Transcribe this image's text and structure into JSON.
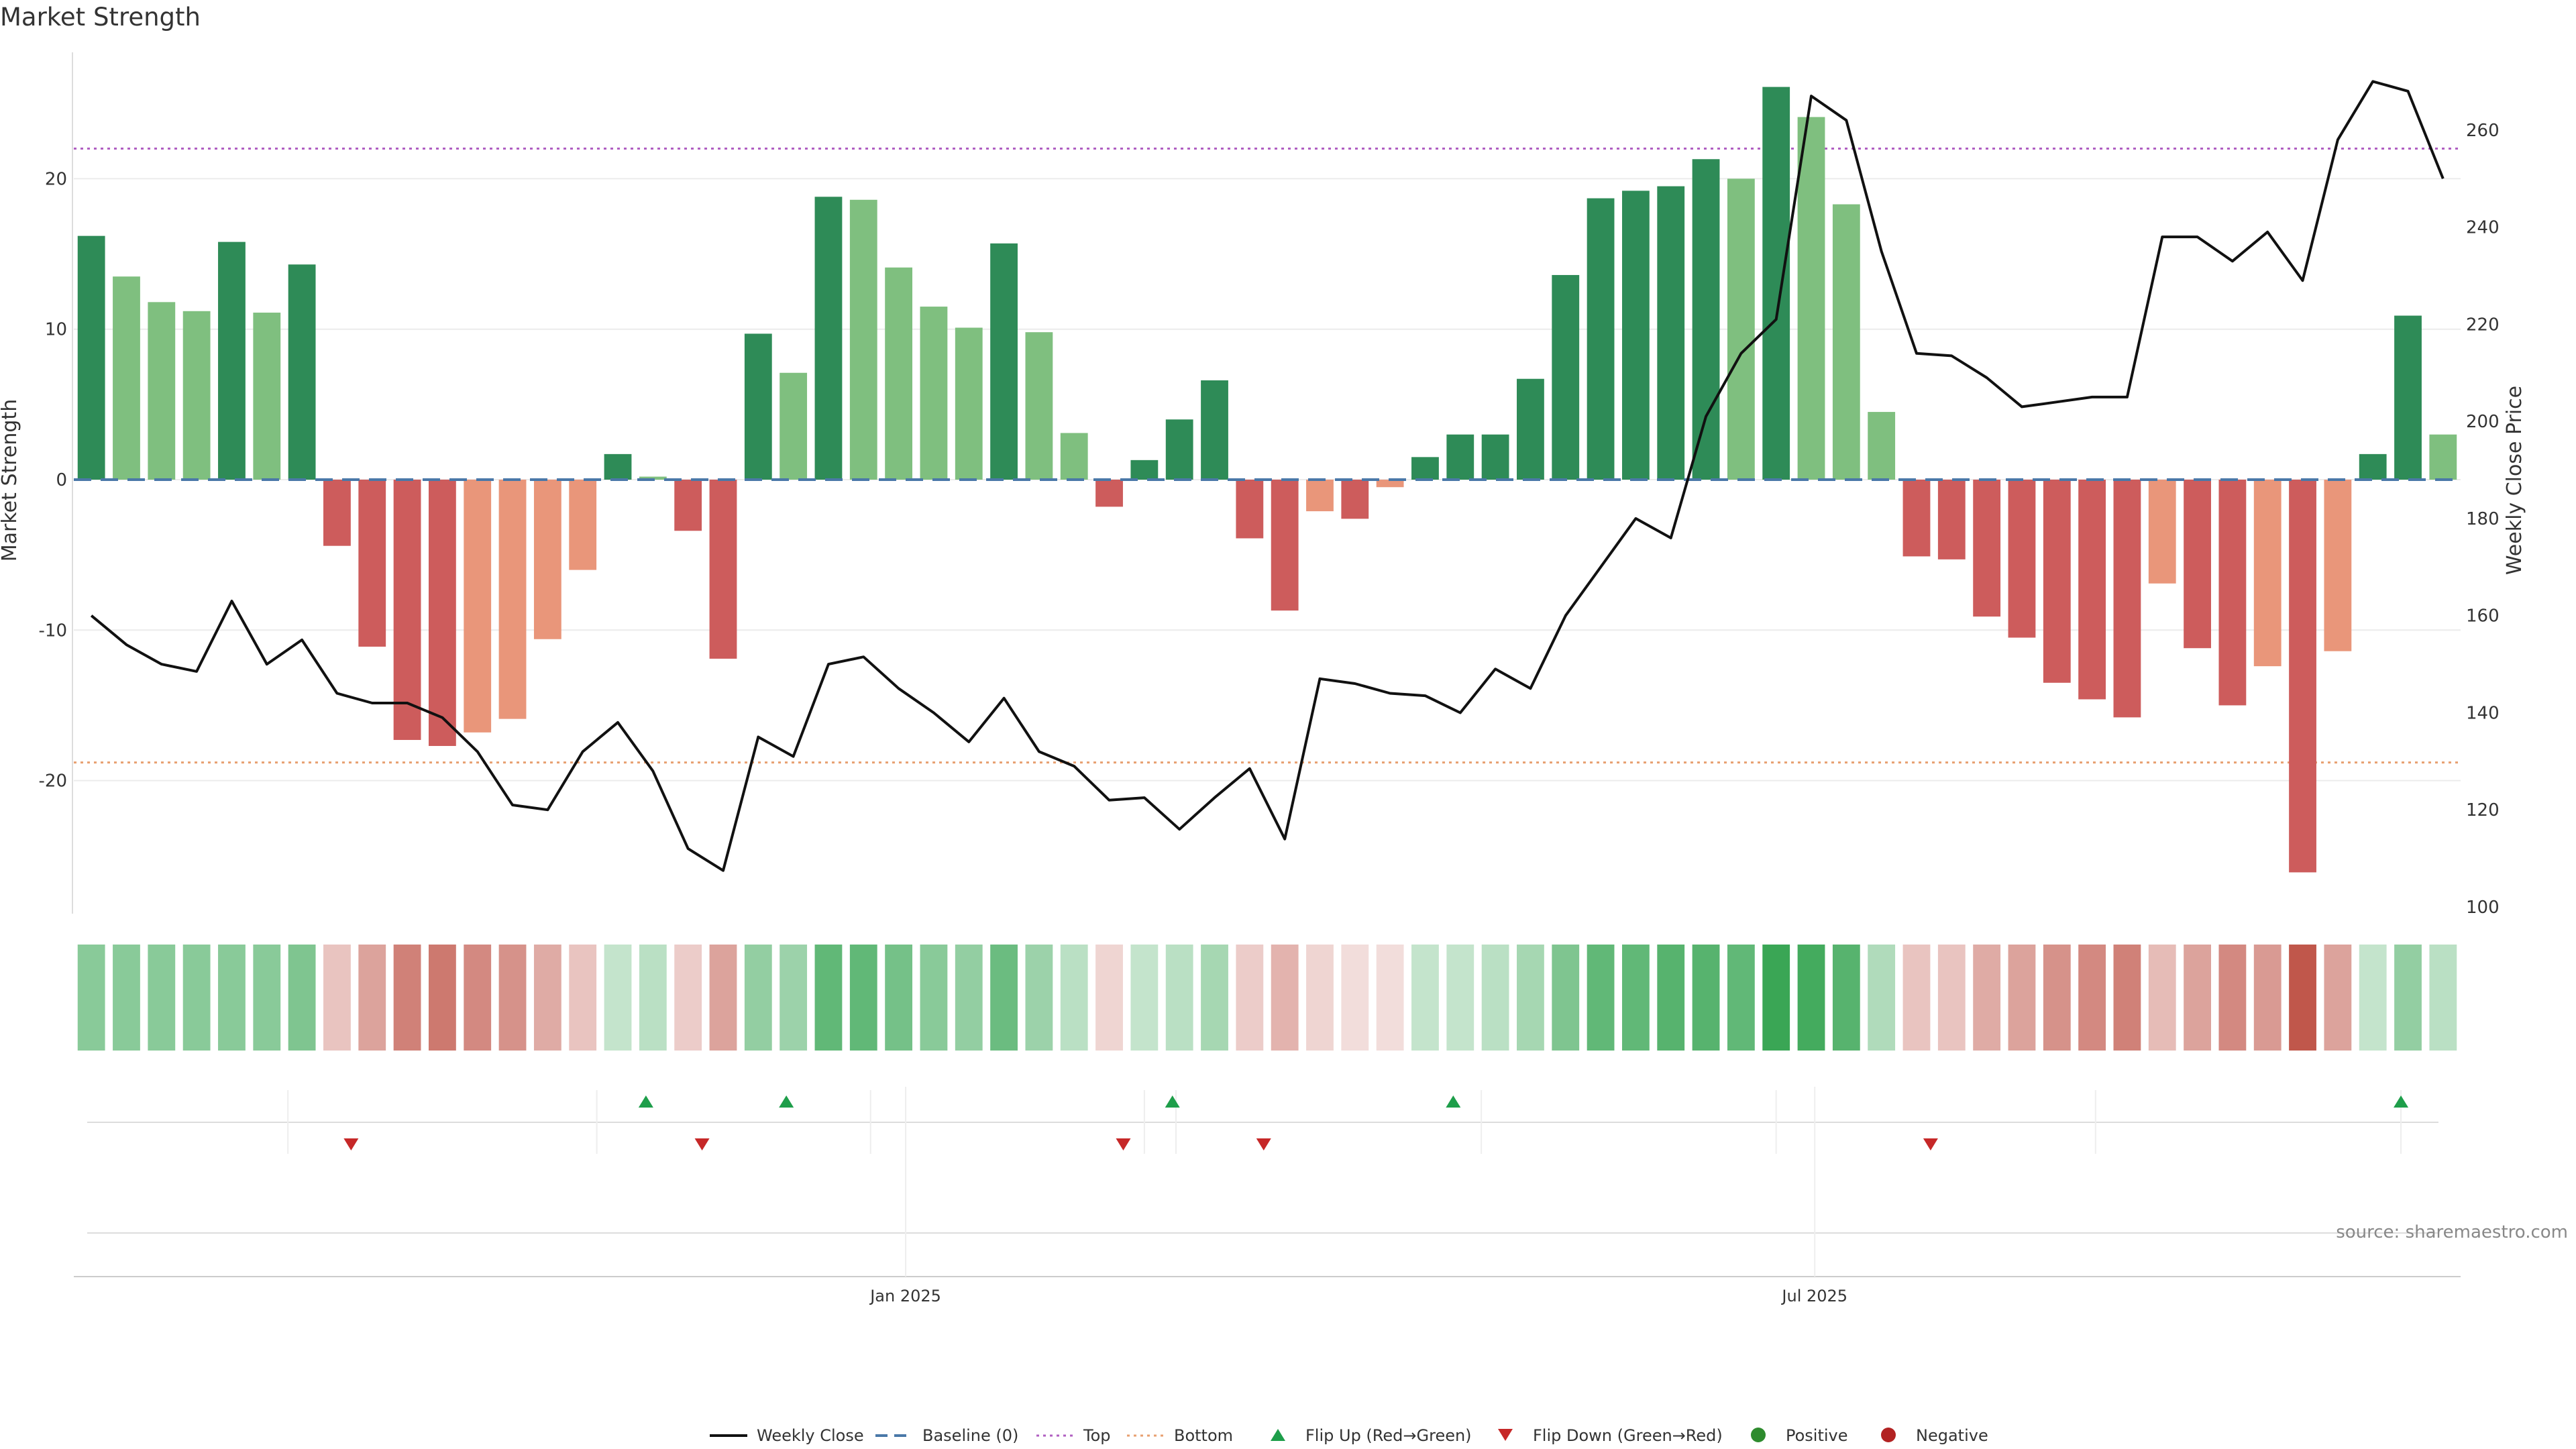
{
  "chart_data": {
    "type": "bar",
    "title": "Market Strength",
    "ylabel": "Market Strength",
    "y2label": "Weekly Close Price",
    "ylim": [
      -28.4,
      28.4
    ],
    "y2lim": [
      100,
      276
    ],
    "yticks": [
      -20,
      -10,
      0,
      10,
      20
    ],
    "y2ticks": [
      100,
      120,
      140,
      160,
      180,
      200,
      220,
      240,
      260
    ],
    "x_ticks": [
      {
        "label": "Jan 2025",
        "index": 23.7
      },
      {
        "label": "Jul 2025",
        "index": 49.6
      }
    ],
    "top_line": 22,
    "bottom_line": -18.8,
    "strength": [
      16.2,
      13.5,
      11.8,
      11.2,
      15.8,
      11.1,
      14.3,
      -4.4,
      -11.1,
      -17.3,
      -17.7,
      -16.8,
      -15.9,
      -10.6,
      -6.0,
      1.7,
      0.2,
      -3.4,
      -11.9,
      9.7,
      7.1,
      18.8,
      18.6,
      14.1,
      11.5,
      10.1,
      15.7,
      9.8,
      3.1,
      -1.8,
      1.3,
      4.0,
      6.6,
      -3.9,
      -8.7,
      -2.1,
      -2.6,
      -0.5,
      1.5,
      3.0,
      3.0,
      6.7,
      13.6,
      18.7,
      19.2,
      19.5,
      21.3,
      20.0,
      26.1,
      24.1,
      18.3,
      4.5,
      -5.1,
      -5.3,
      -9.1,
      -10.5,
      -13.5,
      -14.6,
      -15.8,
      -6.9,
      -11.2,
      -15.0,
      -12.4,
      -26.1,
      -11.4,
      1.7,
      10.9,
      3.0
    ],
    "series": [
      {
        "name": "Weekly Close",
        "values": [
          160,
          154,
          150,
          148.5,
          163,
          150,
          155,
          144,
          142,
          142,
          139,
          132,
          121,
          120,
          132,
          138,
          128,
          112,
          107.5,
          135,
          131,
          150,
          151.5,
          145,
          140,
          134,
          143,
          132,
          129,
          122,
          122.5,
          116,
          122.5,
          128.5,
          114,
          147,
          146,
          144,
          143.5,
          140,
          149,
          145,
          160,
          170,
          180,
          176,
          201,
          214,
          221,
          267,
          262,
          235,
          214,
          213.5,
          209,
          203,
          204,
          205,
          205,
          238,
          238,
          233,
          239,
          229,
          258,
          270,
          268,
          250
        ]
      }
    ],
    "heat_strip": [
      {
        "positive": true,
        "alpha": 0.6
      },
      {
        "positive": true,
        "alpha": 0.6
      },
      {
        "positive": true,
        "alpha": 0.6
      },
      {
        "positive": true,
        "alpha": 0.6
      },
      {
        "positive": true,
        "alpha": 0.6
      },
      {
        "positive": true,
        "alpha": 0.6
      },
      {
        "positive": true,
        "alpha": 0.65
      },
      {
        "positive": false,
        "alpha": 0.35
      },
      {
        "positive": false,
        "alpha": 0.55
      },
      {
        "positive": false,
        "alpha": 0.75
      },
      {
        "positive": false,
        "alpha": 0.8
      },
      {
        "positive": false,
        "alpha": 0.7
      },
      {
        "positive": false,
        "alpha": 0.65
      },
      {
        "positive": false,
        "alpha": 0.5
      },
      {
        "positive": false,
        "alpha": 0.35
      },
      {
        "positive": true,
        "alpha": 0.3
      },
      {
        "positive": true,
        "alpha": 0.35
      },
      {
        "positive": false,
        "alpha": 0.3
      },
      {
        "positive": false,
        "alpha": 0.55
      },
      {
        "positive": true,
        "alpha": 0.55
      },
      {
        "positive": true,
        "alpha": 0.5
      },
      {
        "positive": true,
        "alpha": 0.8
      },
      {
        "positive": true,
        "alpha": 0.8
      },
      {
        "positive": true,
        "alpha": 0.7
      },
      {
        "positive": true,
        "alpha": 0.6
      },
      {
        "positive": true,
        "alpha": 0.55
      },
      {
        "positive": true,
        "alpha": 0.75
      },
      {
        "positive": true,
        "alpha": 0.5
      },
      {
        "positive": true,
        "alpha": 0.35
      },
      {
        "positive": false,
        "alpha": 0.25
      },
      {
        "positive": true,
        "alpha": 0.3
      },
      {
        "positive": true,
        "alpha": 0.35
      },
      {
        "positive": true,
        "alpha": 0.45
      },
      {
        "positive": false,
        "alpha": 0.3
      },
      {
        "positive": false,
        "alpha": 0.45
      },
      {
        "positive": false,
        "alpha": 0.25
      },
      {
        "positive": false,
        "alpha": 0.2
      },
      {
        "positive": false,
        "alpha": 0.2
      },
      {
        "positive": true,
        "alpha": 0.3
      },
      {
        "positive": true,
        "alpha": 0.3
      },
      {
        "positive": true,
        "alpha": 0.35
      },
      {
        "positive": true,
        "alpha": 0.45
      },
      {
        "positive": true,
        "alpha": 0.65
      },
      {
        "positive": true,
        "alpha": 0.8
      },
      {
        "positive": true,
        "alpha": 0.8
      },
      {
        "positive": true,
        "alpha": 0.85
      },
      {
        "positive": true,
        "alpha": 0.85
      },
      {
        "positive": true,
        "alpha": 0.8
      },
      {
        "positive": true,
        "alpha": 1.0
      },
      {
        "positive": true,
        "alpha": 0.95
      },
      {
        "positive": true,
        "alpha": 0.85
      },
      {
        "positive": true,
        "alpha": 0.4
      },
      {
        "positive": false,
        "alpha": 0.35
      },
      {
        "positive": false,
        "alpha": 0.35
      },
      {
        "positive": false,
        "alpha": 0.5
      },
      {
        "positive": false,
        "alpha": 0.55
      },
      {
        "positive": false,
        "alpha": 0.65
      },
      {
        "positive": false,
        "alpha": 0.7
      },
      {
        "positive": false,
        "alpha": 0.75
      },
      {
        "positive": false,
        "alpha": 0.4
      },
      {
        "positive": false,
        "alpha": 0.55
      },
      {
        "positive": false,
        "alpha": 0.7
      },
      {
        "positive": false,
        "alpha": 0.6
      },
      {
        "positive": false,
        "alpha": 1.0
      },
      {
        "positive": false,
        "alpha": 0.55
      },
      {
        "positive": true,
        "alpha": 0.3
      },
      {
        "positive": true,
        "alpha": 0.55
      },
      {
        "positive": true,
        "alpha": 0.35
      }
    ],
    "flip_up": [
      15,
      19,
      30,
      38,
      65
    ],
    "flip_down": [
      7,
      17,
      29,
      33,
      52
    ],
    "legend": [
      {
        "label": "Weekly Close",
        "kind": "line"
      },
      {
        "label": "Baseline (0)",
        "kind": "dashed"
      },
      {
        "label": "Top",
        "kind": "dotted-purple"
      },
      {
        "label": "Bottom",
        "kind": "dotted-orange"
      },
      {
        "label": "Flip Up (Red→Green)",
        "kind": "tri-up"
      },
      {
        "label": "Flip Down (Green→Red)",
        "kind": "tri-down"
      },
      {
        "label": "Positive",
        "kind": "dot-green"
      },
      {
        "label": "Negative",
        "kind": "dot-red"
      }
    ],
    "source": "source: sharemaestro.com",
    "colors": {
      "pos_strong": "#2e8b57",
      "pos_light": "#7fbf7f",
      "neg_strong": "#cd5c5c",
      "neg_light": "#e9967a",
      "heat_pos": "#3aa655",
      "heat_neg": "#c0574b",
      "close_line": "#111111",
      "baseline": "#4a78a8",
      "top_line": "#b05fc2",
      "bottom_line": "#e8a070",
      "flip_up": "#1e9e4a",
      "flip_down": "#c62828",
      "dot_pos": "#2e8b2e",
      "dot_neg": "#b22222"
    }
  }
}
